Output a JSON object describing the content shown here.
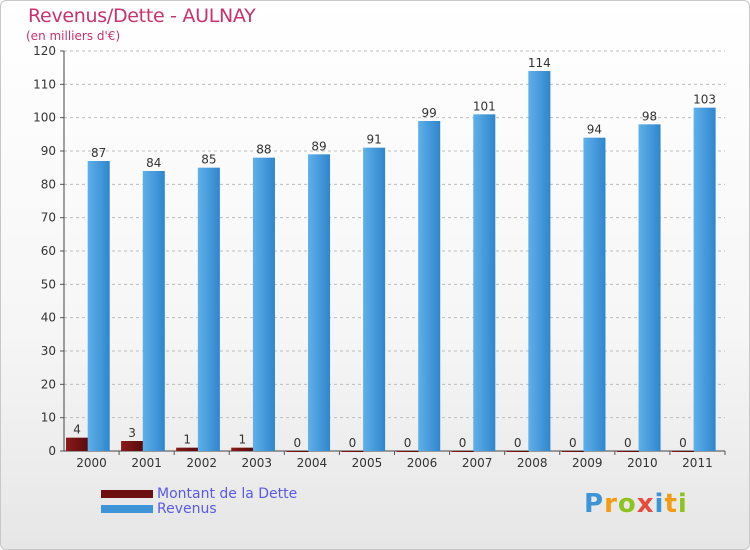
{
  "header": {
    "title": "Revenus/Dette - AULNAY",
    "subtitle": "(en milliers d'€)"
  },
  "legend": {
    "debt_label": "Montant de la Dette",
    "revenue_label": "Revenus"
  },
  "logo": {
    "letters": [
      "P",
      "r",
      "o",
      "x",
      "i",
      "t",
      "i"
    ],
    "colors": [
      "#3d95d8",
      "#f39c12",
      "#8fc31f",
      "#e74c3c",
      "#3d95d8",
      "#f39c12",
      "#8fc31f"
    ]
  },
  "colors": {
    "debt": "#6e0f0f",
    "revenue": "#3d95d8",
    "title": "#c8326e"
  },
  "chart_data": {
    "type": "bar",
    "title": "Revenus/Dette - AULNAY",
    "ylabel": "(en milliers d'€)",
    "xlabel": "",
    "ylim": [
      0,
      120
    ],
    "yticks": [
      0,
      10,
      20,
      30,
      40,
      50,
      60,
      70,
      80,
      90,
      100,
      110,
      120
    ],
    "grid": true,
    "legend": "bottom-left",
    "categories": [
      "2000",
      "2001",
      "2002",
      "2003",
      "2004",
      "2005",
      "2006",
      "2007",
      "2008",
      "2009",
      "2010",
      "2011"
    ],
    "series": [
      {
        "name": "Montant de la Dette",
        "values": [
          4,
          3,
          1,
          1,
          0,
          0,
          0,
          0,
          0,
          0,
          0,
          0
        ]
      },
      {
        "name": "Revenus",
        "values": [
          87,
          84,
          85,
          88,
          89,
          91,
          99,
          101,
          114,
          94,
          98,
          103
        ]
      }
    ]
  }
}
